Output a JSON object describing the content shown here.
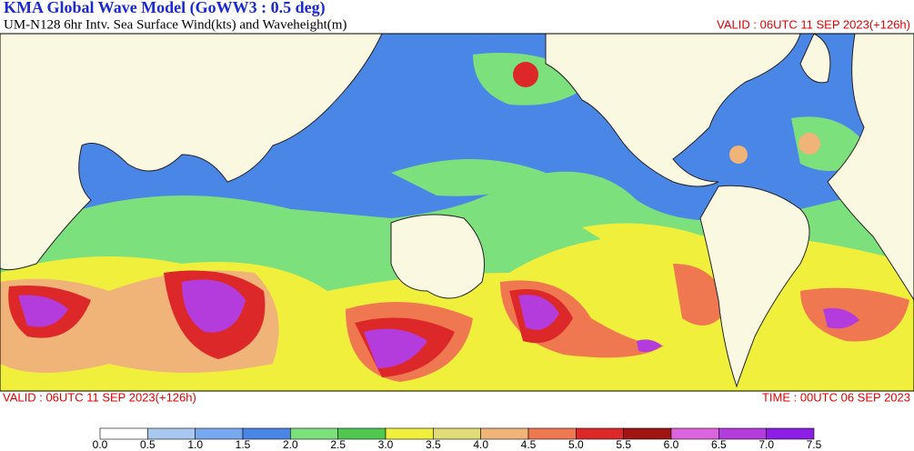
{
  "header": {
    "title": "KMA  Global Wave Model (GoWW3 : 0.5 deg)",
    "subtitle": "UM-N128  6hr Intv. Sea Surface Wind(kts) and Waveheight(m)",
    "valid": "VALID : 06UTC 11 SEP 2023(+126h)"
  },
  "footer": {
    "valid": "VALID : 06UTC 11 SEP 2023(+126h)",
    "time": "TIME : 00UTC 06 SEP 2023"
  },
  "colorbar": {
    "labels": [
      "0.0",
      "0.5",
      "1.0",
      "1.5",
      "2.0",
      "2.5",
      "3.0",
      "3.5",
      "4.0",
      "4.5",
      "5.0",
      "5.5",
      "6.0",
      "6.5",
      "7.0",
      "7.5"
    ],
    "colors": [
      "#ffffff",
      "#a8c8f0",
      "#78a8f0",
      "#4a86e6",
      "#7ce07c",
      "#50c850",
      "#f0f03c",
      "#e0dc78",
      "#f0b478",
      "#f07850",
      "#dc2828",
      "#a01414",
      "#dc64dc",
      "#b43cdc",
      "#8c1ee6"
    ]
  }
}
